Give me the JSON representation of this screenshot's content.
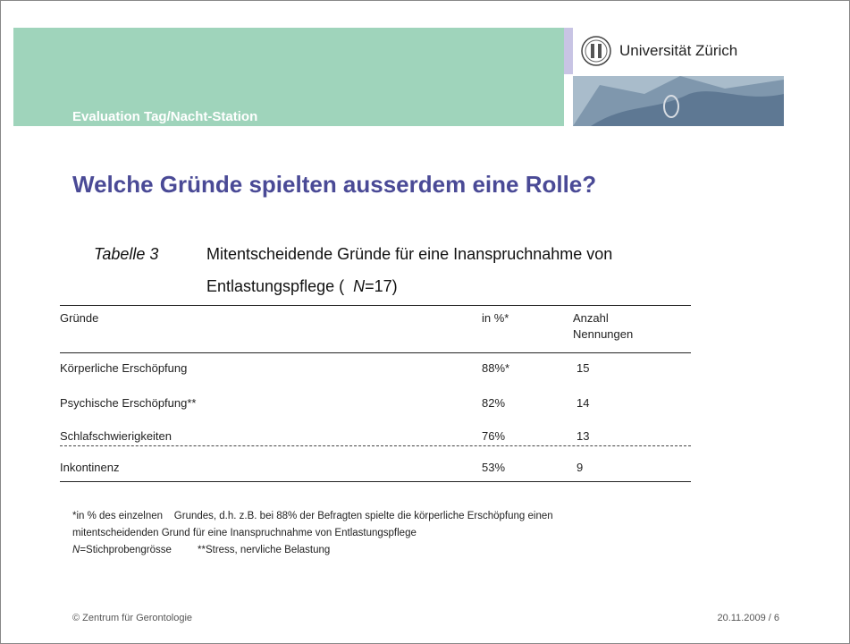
{
  "header": {
    "label": "Evaluation Tag/Nacht-Station",
    "logo": "Universität Zürich"
  },
  "title": "Welche Gründe spielten ausserdem eine Rolle?",
  "caption": {
    "label": "Tabelle 3",
    "line_1": "Mitentscheidende Gründe für eine Inanspruchnahme von",
    "line_2": "Entlastungspflege (",
    "n": "N",
    "line_2_end": "=17)"
  },
  "table": {
    "headers": [
      "Gründe",
      "in %*",
      [
        "Anzahl",
        "Nennungen"
      ]
    ],
    "rows": [
      [
        "Körperliche Erschöpfung",
        "88%*",
        15
      ],
      [
        "Psychische Erschöpfung**",
        "82%",
        14
      ],
      [
        "Schlafschwierigkeiten",
        "76%",
        13
      ],
      [
        "Inkontinenz",
        "53%",
        9
      ]
    ]
  },
  "footnotes": {
    "line_1": "*in % des einzelnen    Grundes, d.h. z.B. bei 88% der Befragten spielte die körperliche Erschöpfung einen",
    "line_2": "mitentscheidenden Grund für eine Inanspruchnahme von Entlastungspflege",
    "n": "N",
    "n_text": "=Stichprobengrösse",
    "stress": "**Stress, nervliche Belastung"
  },
  "footer": {
    "left": "© Zentrum für Gerontologie",
    "right": "20.11.2009 / 6"
  }
}
